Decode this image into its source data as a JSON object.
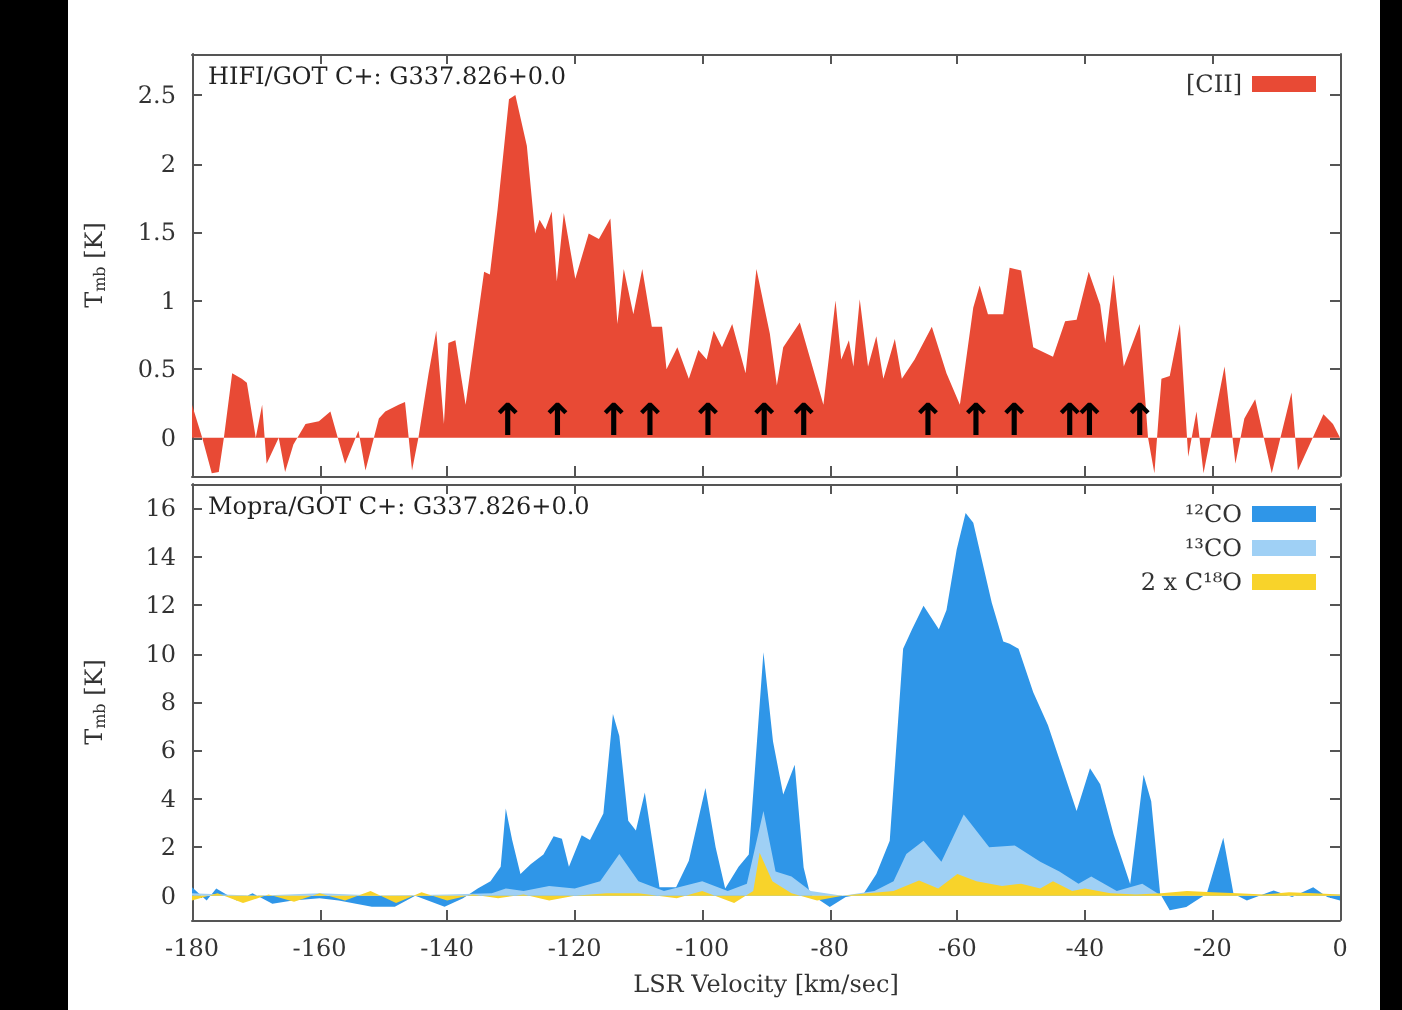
{
  "chart_data": [
    {
      "type": "area",
      "xlim": [
        -180,
        0
      ],
      "xticks": [
        -180,
        -160,
        -140,
        -120,
        -100,
        -80,
        -60,
        -40,
        -20,
        0
      ],
      "ylim": [
        -0.28,
        2.8
      ],
      "yticks": [
        0,
        0.5,
        1,
        1.5,
        2,
        2.5
      ],
      "ylabel": "T$_{mb}$ [K]",
      "tick_labels": "y",
      "grid": false,
      "legend": "top right",
      "marker": "none",
      "annotations": [
        "HIFI/GOT C+: G337.826+0.0",
        {
          "text": "↑",
          "x": -130.5,
          "y": 0
        },
        {
          "text": "↑",
          "x": -122.7,
          "y": 0
        },
        {
          "text": "↑",
          "x": -113.9,
          "y": 0
        },
        {
          "text": "↑",
          "x": -108.2,
          "y": 0
        },
        {
          "text": "↑",
          "x": -99.1,
          "y": 0
        },
        {
          "text": "↑",
          "x": -90.3,
          "y": 0
        },
        {
          "text": "↑",
          "x": -84.1,
          "y": 0
        },
        {
          "text": "↑",
          "x": -64.6,
          "y": 0
        },
        {
          "text": "↑",
          "x": -57.1,
          "y": 0
        },
        {
          "text": "↑",
          "x": -51.1,
          "y": 0
        },
        {
          "text": "↑",
          "x": -42.4,
          "y": 0
        },
        {
          "text": "↑",
          "x": -39.3,
          "y": 0
        },
        {
          "text": "↑",
          "x": -31.4,
          "y": 0
        }
      ],
      "series": [
        {
          "name": "[CII]",
          "color": "#e84a35",
          "x": [
            -180,
            -178.4,
            -176.9,
            -175.8,
            -175,
            -173.7,
            -172.2,
            -171.4,
            -170,
            -169,
            -168.3,
            -166.4,
            -165.4,
            -164.1,
            -162.2,
            -160.1,
            -158.3,
            -156,
            -153.9,
            -152.8,
            -150.7,
            -149.7,
            -147.6,
            -146.6,
            -145.5,
            -144.5,
            -142.9,
            -141.7,
            -140.5,
            -139.8,
            -138.7,
            -137.1,
            -134.2,
            -133.3,
            -132.1,
            -130.3,
            -129.3,
            -127.5,
            -126.2,
            -125.5,
            -124.6,
            -123.6,
            -122.8,
            -121.7,
            -119.9,
            -117.8,
            -116.2,
            -114.4,
            -113.3,
            -112.3,
            -110.8,
            -109.4,
            -107.9,
            -106.3,
            -105.6,
            -103.9,
            -102.1,
            -100.6,
            -99.3,
            -98.2,
            -96.9,
            -95.3,
            -93.2,
            -91.5,
            -89.4,
            -88.3,
            -87.3,
            -84.7,
            -81,
            -79.1,
            -78.2,
            -77,
            -76.3,
            -75.3,
            -74,
            -72.7,
            -71.6,
            -69.8,
            -68.7,
            -66.7,
            -64,
            -61.7,
            -59.6,
            -57.5,
            -56.5,
            -55.2,
            -52.8,
            -51.8,
            -50,
            -48.1,
            -45,
            -43.1,
            -41.3,
            -39.4,
            -37.6,
            -36.8,
            -35.5,
            -33.9,
            -31.4,
            -30.1,
            -29.1,
            -28,
            -26.7,
            -25.1,
            -23.8,
            -22.5,
            -21.4,
            -18.1,
            -16.4,
            -15,
            -13.3,
            -10.7,
            -7.6,
            -6.6,
            -2.6,
            -1.1,
            0
          ],
          "values": [
            0.24,
            0,
            -0.26,
            -0.25,
            0,
            0.47,
            0.43,
            0.4,
            0,
            0.24,
            -0.19,
            0,
            -0.25,
            -0.05,
            0.1,
            0.12,
            0.19,
            -0.19,
            0.05,
            -0.24,
            0.14,
            0.19,
            0.24,
            0.26,
            -0.24,
            0,
            0.47,
            0.78,
            0.1,
            0.69,
            0.71,
            0.24,
            1.21,
            1.19,
            1.66,
            2.47,
            2.5,
            2.13,
            1.49,
            1.59,
            1.52,
            1.65,
            1.14,
            1.64,
            1.16,
            1.49,
            1.45,
            1.6,
            0.83,
            1.23,
            0.9,
            1.23,
            0.81,
            0.81,
            0.5,
            0.66,
            0.43,
            0.64,
            0.57,
            0.78,
            0.66,
            0.83,
            0.47,
            1.23,
            0.76,
            0.38,
            0.66,
            0.84,
            0.24,
            1.0,
            0.57,
            0.71,
            0.52,
            1.01,
            0.52,
            0.74,
            0.43,
            0.72,
            0.43,
            0.57,
            0.81,
            0.47,
            0.24,
            0.95,
            1.11,
            0.9,
            0.9,
            1.24,
            1.22,
            0.66,
            0.59,
            0.85,
            0.86,
            1.21,
            0.97,
            0.69,
            1.19,
            0.52,
            0.83,
            0,
            -0.26,
            0.43,
            0.45,
            0.83,
            -0.14,
            0.19,
            -0.26,
            0.52,
            -0.19,
            0.14,
            0.28,
            -0.26,
            0.33,
            -0.24,
            0.17,
            0.1,
            0
          ]
        }
      ]
    },
    {
      "type": "area",
      "xlim": [
        -180,
        0
      ],
      "xticks": [
        -180,
        -160,
        -140,
        -120,
        -100,
        -80,
        -60,
        -40,
        -20,
        0
      ],
      "ylim": [
        -1,
        17
      ],
      "yticks": [
        0,
        2,
        4,
        6,
        8,
        10,
        12,
        14,
        16
      ],
      "xlabel": "LSR Velocity [km/sec]",
      "ylabel": "T$_{mb}$ [K]",
      "grid": false,
      "legend": "top right",
      "marker": "none",
      "annotations": [
        "Mopra/GOT C+: G337.826+0.0"
      ],
      "series": [
        {
          "name": "¹²CO",
          "color": "#2f96e8",
          "x": [
            -180,
            -177.7,
            -176.2,
            -173,
            -170.5,
            -167.4,
            -164.2,
            -160,
            -157,
            -151.8,
            -148.2,
            -145,
            -140.4,
            -137.5,
            -135.2,
            -133.2,
            -131.6,
            -130.8,
            -129.8,
            -128.5,
            -126.9,
            -124.9,
            -123.3,
            -122,
            -120.9,
            -118.9,
            -117.6,
            -115.5,
            -114,
            -113,
            -111.6,
            -110.4,
            -109,
            -106.7,
            -104.1,
            -102.1,
            -99.5,
            -97.9,
            -96.4,
            -94.3,
            -92.7,
            -90.4,
            -88.9,
            -87.3,
            -85.5,
            -84.1,
            -83.1,
            -80,
            -77.5,
            -74.7,
            -72.7,
            -70.6,
            -68.5,
            -67.1,
            -65.3,
            -62.9,
            -61.7,
            -60.1,
            -58.7,
            -57.5,
            -54.6,
            -52.8,
            -51.8,
            -50.4,
            -48.1,
            -45.8,
            -43.7,
            -41.3,
            -39.2,
            -37.6,
            -35.5,
            -32.9,
            -30.8,
            -29.6,
            -28.2,
            -26.7,
            -24.1,
            -20.9,
            -18.3,
            -16.7,
            -14.6,
            -10.4,
            -7.5,
            -4.2,
            -2,
            0
          ],
          "values": [
            0.35,
            -0.2,
            0.3,
            -0.2,
            0.1,
            -0.33,
            -0.2,
            -0.1,
            -0.2,
            -0.45,
            -0.45,
            0,
            -0.45,
            -0.1,
            0.3,
            0.6,
            1.2,
            3.6,
            2.3,
            0.9,
            1.3,
            1.7,
            2.46,
            2.35,
            1.2,
            2.5,
            2.3,
            3.4,
            7.5,
            6.6,
            3.1,
            2.7,
            4.26,
            0.35,
            0.35,
            1.45,
            4.45,
            2.0,
            0.3,
            1.2,
            1.7,
            10.05,
            6.37,
            4.18,
            5.41,
            1.17,
            0.08,
            -0.46,
            -0.05,
            0.08,
            0.9,
            2.27,
            10.2,
            11,
            11.97,
            11.0,
            11.8,
            14.3,
            15.8,
            15.4,
            12.1,
            10.5,
            10.4,
            10.2,
            8.4,
            7.05,
            5.4,
            3.5,
            5.27,
            4.6,
            2.54,
            0.49,
            5.0,
            3.9,
            0.08,
            -0.6,
            -0.46,
            0.08,
            2.4,
            0.08,
            -0.19,
            0.22,
            -0.05,
            0.35,
            -0.05,
            -0.2
          ]
        },
        {
          "name": "¹³CO",
          "color": "#9fd0f5",
          "x": [
            -180,
            -170,
            -160,
            -150,
            -140,
            -133,
            -130.8,
            -128,
            -124,
            -120,
            -116,
            -113,
            -110,
            -106,
            -100,
            -96,
            -93,
            -90.4,
            -88.5,
            -86,
            -83,
            -78,
            -73,
            -70,
            -68,
            -65.3,
            -62.5,
            -59,
            -55,
            -51,
            -47,
            -44,
            -41,
            -39,
            -35,
            -31,
            -28,
            -20,
            -10,
            0
          ],
          "values": [
            0.1,
            0,
            0.1,
            0,
            0.05,
            0.1,
            0.3,
            0.2,
            0.4,
            0.3,
            0.6,
            1.72,
            0.6,
            0.2,
            0.6,
            0.2,
            0.5,
            3.5,
            1.0,
            0.8,
            0.2,
            0,
            0.2,
            0.6,
            1.72,
            2.27,
            1.4,
            3.36,
            2.0,
            2.08,
            1.4,
            1.0,
            0.5,
            0.8,
            0.2,
            0.5,
            0,
            0.1,
            0,
            0.05
          ]
        },
        {
          "name": "2 x C¹⁸O",
          "color": "#f8d32a",
          "x": [
            -180,
            -176,
            -172,
            -168,
            -164,
            -160,
            -156,
            -152,
            -148,
            -144,
            -140,
            -136,
            -132,
            -128,
            -124,
            -120,
            -115,
            -110,
            -104,
            -100,
            -95,
            -92,
            -91,
            -89,
            -86,
            -82,
            -78,
            -74,
            -70,
            -66,
            -63,
            -60,
            -57,
            -53,
            -50,
            -47,
            -45,
            -42,
            -40,
            -36,
            -32,
            -28,
            -24,
            -20,
            -16,
            -12,
            -8,
            -4,
            0
          ],
          "values": [
            -0.2,
            0.1,
            -0.3,
            0.05,
            -0.25,
            0.1,
            -0.2,
            0.2,
            -0.3,
            0.15,
            -0.2,
            0.05,
            -0.1,
            0.05,
            -0.2,
            0,
            0.1,
            0.1,
            -0.1,
            0.2,
            -0.3,
            0.2,
            1.78,
            0.6,
            0.1,
            -0.2,
            0,
            0.1,
            0.2,
            0.63,
            0.3,
            0.9,
            0.6,
            0.4,
            0.5,
            0.3,
            0.6,
            0.2,
            0.3,
            0.1,
            0.05,
            0.1,
            0.2,
            0.15,
            0.1,
            0.05,
            0.15,
            0.1,
            0.05
          ]
        }
      ]
    }
  ]
}
